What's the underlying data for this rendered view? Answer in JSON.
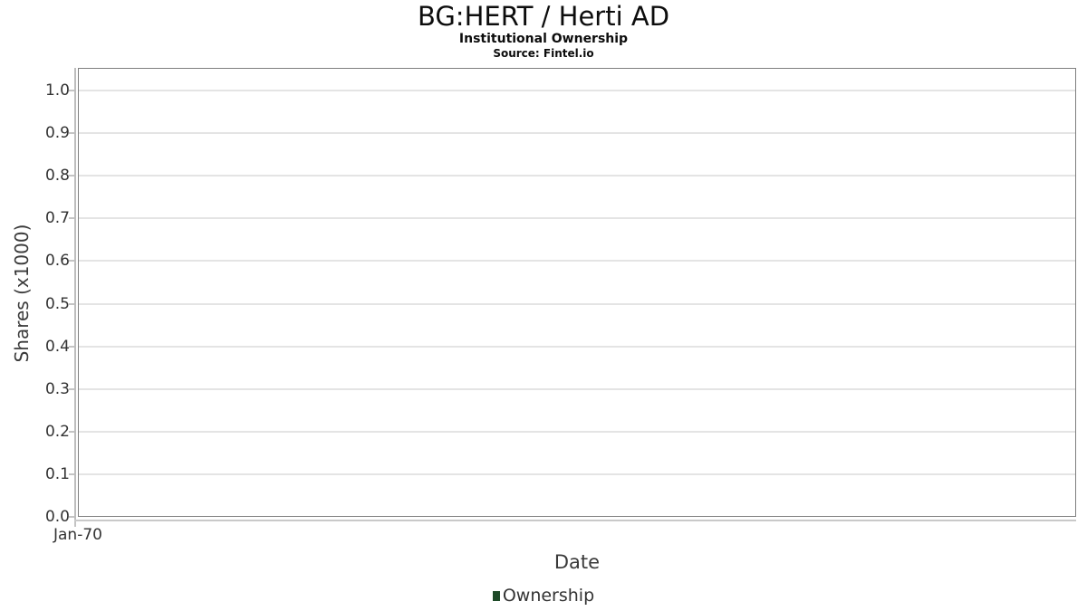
{
  "chart_data": {
    "type": "line",
    "title": "BG:HERT / Herti AD",
    "subtitle": "Institutional Ownership",
    "source": "Source: Fintel.io",
    "xlabel": "Date",
    "ylabel": "Shares (x1000)",
    "x_ticks": [
      "Jan-70"
    ],
    "y_ticks": [
      "0.0",
      "0.1",
      "0.2",
      "0.3",
      "0.4",
      "0.5",
      "0.6",
      "0.7",
      "0.8",
      "0.9",
      "1.0"
    ],
    "ylim": [
      0,
      1.053
    ],
    "xlim_note": "single tick Jan-70 at left edge",
    "grid": "horizontal-only",
    "legend_position": "bottom-center",
    "series": [
      {
        "name": "Ownership",
        "color": "#1e4a28",
        "x": [],
        "values": []
      }
    ]
  },
  "legend": {
    "items": [
      {
        "label": "Ownership",
        "color": "#1e4a28"
      }
    ]
  },
  "colors": {
    "plot_border": "#7f7f7f",
    "gridline": "#e4e4e4",
    "tick": "#c4c4c4",
    "tick_label": "#333333",
    "axis_title": "#3a3a3a",
    "title_text": "#0d0d0d",
    "background": "#ffffff"
  }
}
